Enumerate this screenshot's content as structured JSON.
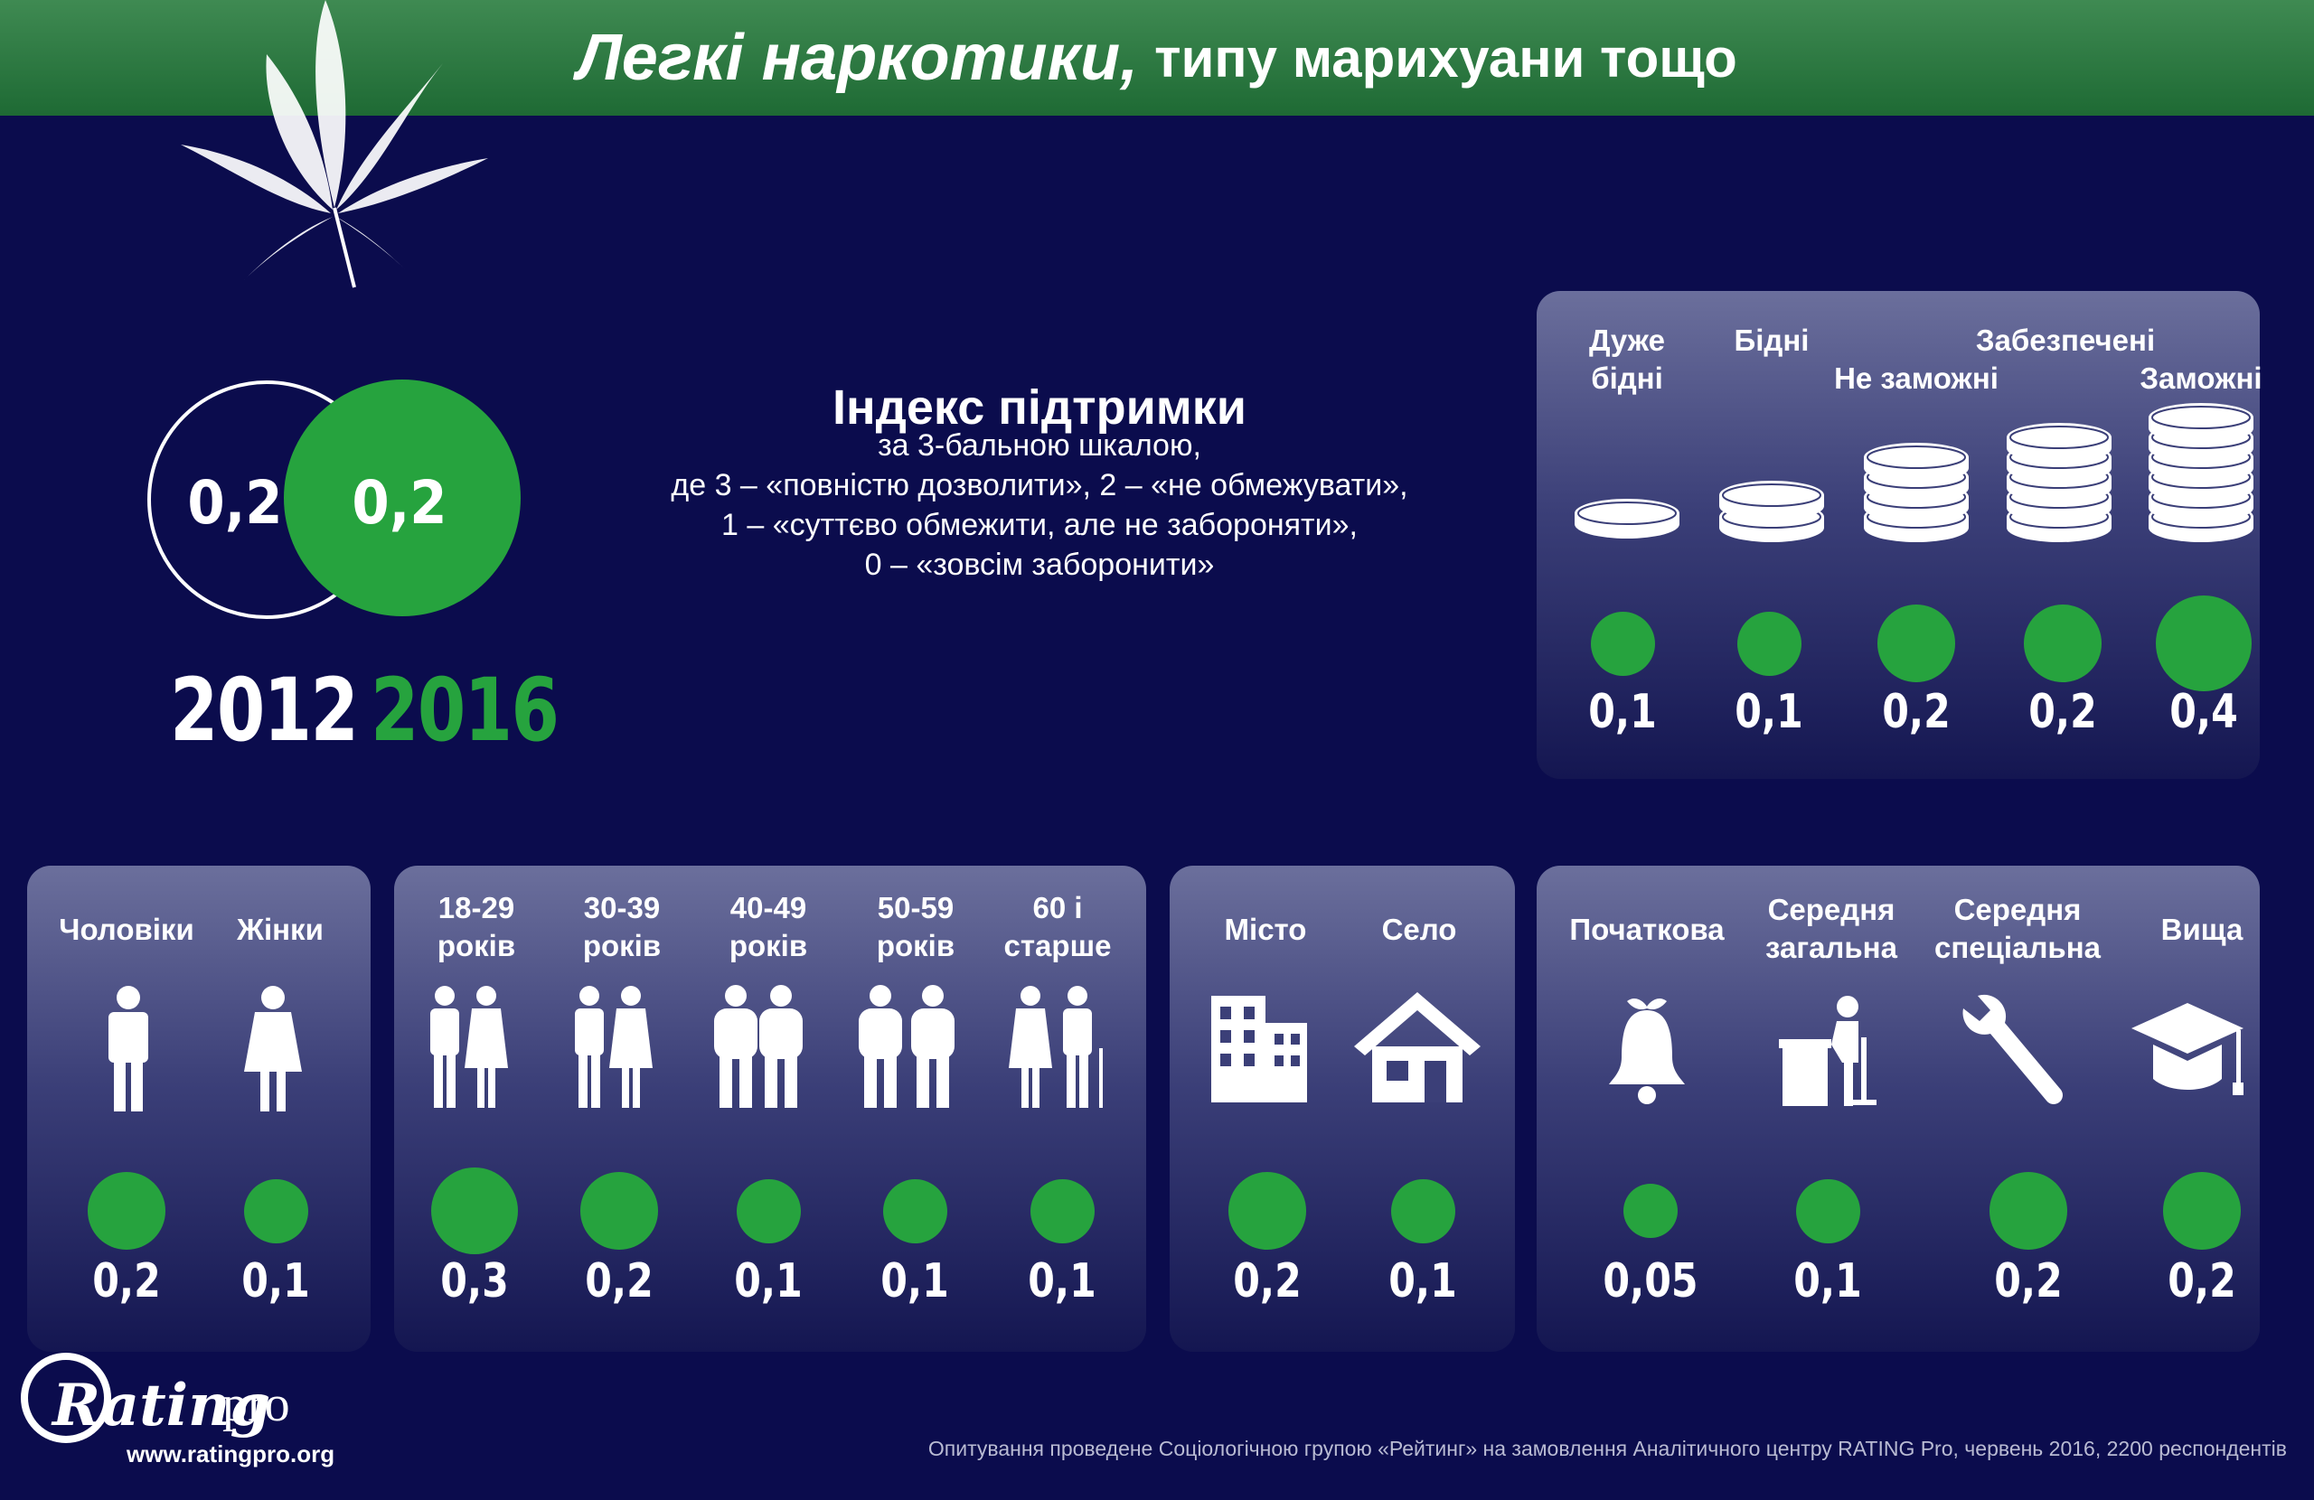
{
  "title": {
    "main": "Легкі наркотики,",
    "sub": "типу марихуани тощо"
  },
  "colors": {
    "background": "#0b0c4d",
    "accent": "#26a33e",
    "title_bar": "#2a7a3f"
  },
  "overall": {
    "v2012": "0,2",
    "v2016": "0,2",
    "y2012": "2012",
    "y2016": "2016"
  },
  "index": {
    "title": "Індекс підтримки",
    "lines": [
      "за 3-бальною шкалою,",
      "де 3 – «повністю дозволити», 2 – «не обмежувати»,",
      "1 – «суттєво обмежити, але не забороняти»,",
      "0 – «зовсім заборонити»"
    ]
  },
  "wealth": [
    {
      "label1": "Дуже",
      "label2": "бідні",
      "value": "0,1",
      "num": 0.1,
      "icon": "coins-1-icon"
    },
    {
      "label1": "Бідні",
      "label2": "",
      "value": "0,1",
      "num": 0.1,
      "icon": "coins-2-icon"
    },
    {
      "label1": "Не заможні",
      "label2": "",
      "value": "0,2",
      "num": 0.2,
      "icon": "coins-3-icon"
    },
    {
      "label1": "Забезпечені",
      "label2": "",
      "value": "0,2",
      "num": 0.2,
      "icon": "coins-4-icon"
    },
    {
      "label1": "Заможні",
      "label2": "",
      "value": "0,4",
      "num": 0.4,
      "icon": "coins-5-icon"
    }
  ],
  "gender": [
    {
      "label": "Чоловіки",
      "value": "0,2",
      "num": 0.2,
      "icon": "man-icon"
    },
    {
      "label": "Жінки",
      "value": "0,1",
      "num": 0.1,
      "icon": "woman-icon"
    }
  ],
  "age": [
    {
      "label1": "18-29",
      "label2": "років",
      "value": "0,3",
      "num": 0.3,
      "icon": "couple-young-icon"
    },
    {
      "label1": "30-39",
      "label2": "років",
      "value": "0,2",
      "num": 0.2,
      "icon": "couple-adult-icon"
    },
    {
      "label1": "40-49",
      "label2": "років",
      "value": "0,1",
      "num": 0.1,
      "icon": "couple-middle-icon"
    },
    {
      "label1": "50-59",
      "label2": "років",
      "value": "0,1",
      "num": 0.1,
      "icon": "couple-mature-icon"
    },
    {
      "label1": "60 і",
      "label2": "старше",
      "value": "0,1",
      "num": 0.1,
      "icon": "couple-elderly-icon"
    }
  ],
  "settlement": [
    {
      "label": "Місто",
      "value": "0,2",
      "num": 0.2,
      "icon": "city-icon"
    },
    {
      "label": "Село",
      "value": "0,1",
      "num": 0.1,
      "icon": "house-icon"
    }
  ],
  "education": [
    {
      "label1": "Початкова",
      "label2": "",
      "value": "0,05",
      "num": 0.05,
      "icon": "bell-icon"
    },
    {
      "label1": "Середня",
      "label2": "загальна",
      "value": "0,1",
      "num": 0.1,
      "icon": "student-desk-icon"
    },
    {
      "label1": "Середня",
      "label2": "спеціальна",
      "value": "0,2",
      "num": 0.2,
      "icon": "wrench-icon"
    },
    {
      "label1": "Вища",
      "label2": "",
      "value": "0,2",
      "num": 0.2,
      "icon": "graduation-cap-icon"
    }
  ],
  "footer": {
    "logo": "Rating",
    "logo_suffix": "pro",
    "url": "www.ratingpro.org",
    "source": "Опитування проведене Соціологічною групою «Рейтинг» на замовлення Аналітичного центру RATING Pro, червень 2016, 2200 респондентів"
  }
}
